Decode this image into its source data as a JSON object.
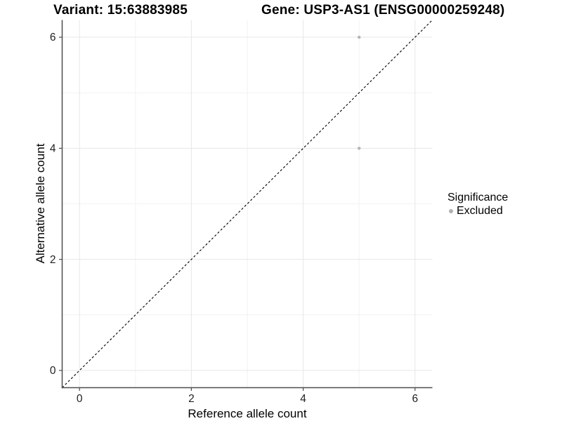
{
  "header": {
    "title_left": "Variant: 15:63883985",
    "title_right": "Gene: USP3-AS1 (ENSG00000259248)"
  },
  "chart_data": {
    "type": "scatter",
    "xlabel": "Reference allele count",
    "ylabel": "Alternative allele count",
    "xlim": [
      -0.31,
      6.31
    ],
    "ylim": [
      -0.31,
      6.31
    ],
    "x_ticks": [
      0,
      2,
      4,
      6
    ],
    "y_ticks": [
      0,
      2,
      4,
      6
    ],
    "x_minor_ticks": [
      1,
      3,
      5
    ],
    "y_minor_ticks": [
      1,
      3,
      5
    ],
    "grid": true,
    "series": [
      {
        "name": "Excluded",
        "points": [
          {
            "x": 5,
            "y": 6
          },
          {
            "x": 5,
            "y": 4
          }
        ],
        "color": "#b4b4b4"
      }
    ],
    "reference_line": {
      "kind": "identity",
      "equation": "y = x",
      "style": "dashed",
      "color": "#000000"
    },
    "legend": {
      "position": "right",
      "title": "Significance",
      "items": [
        {
          "label": "Excluded",
          "color": "#b0b0b0"
        }
      ]
    }
  },
  "colors": {
    "background": "#ffffff",
    "grid_major": "#e7e7e7",
    "grid_minor": "#f2f2f2",
    "axis_line": "#4d4d4d",
    "tick_label": "#1f1f1f",
    "point": "#b4b4b4"
  }
}
